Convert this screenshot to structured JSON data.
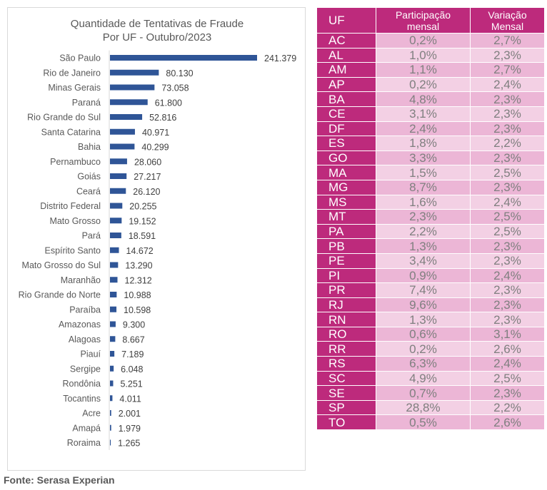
{
  "chart_data": {
    "type": "bar",
    "orientation": "horizontal",
    "title": "Quantidade de Tentativas de Fraude\nPor UF - Outubro/2023",
    "title_lines": [
      "Quantidade de Tentativas de Fraude",
      "Por UF - Outubro/2023"
    ],
    "xlabel": "",
    "ylabel": "",
    "xlim": [
      0,
      241379
    ],
    "grid": false,
    "legend": "none",
    "bar_color": "#2f5597",
    "categories": [
      "São Paulo",
      "Rio de Janeiro",
      "Minas Gerais",
      "Paraná",
      "Rio Grande do Sul",
      "Santa Catarina",
      "Bahia",
      "Pernambuco",
      "Goiás",
      "Ceará",
      "Distrito Federal",
      "Mato Grosso",
      "Pará",
      "Espírito Santo",
      "Mato Grosso do Sul",
      "Maranhão",
      "Rio Grande do Norte",
      "Paraíba",
      "Amazonas",
      "Alagoas",
      "Piauí",
      "Sergipe",
      "Rondônia",
      "Tocantins",
      "Acre",
      "Amapá",
      "Roraima"
    ],
    "values": [
      241379,
      80130,
      73058,
      61800,
      52816,
      40971,
      40299,
      28060,
      27217,
      26120,
      20255,
      19152,
      18591,
      14672,
      13290,
      12312,
      10988,
      10598,
      9300,
      8667,
      7189,
      6048,
      5251,
      4011,
      2001,
      1979,
      1265
    ],
    "value_labels": [
      "241.379",
      "80.130",
      "73.058",
      "61.800",
      "52.816",
      "40.971",
      "40.299",
      "28.060",
      "27.217",
      "26.120",
      "20.255",
      "19.152",
      "18.591",
      "14.672",
      "13.290",
      "12.312",
      "10.988",
      "10.598",
      "9.300",
      "8.667",
      "7.189",
      "6.048",
      "5.251",
      "4.011",
      "2.001",
      "1.979",
      "1.265"
    ]
  },
  "table": {
    "headers": [
      "UF",
      "Participação mensal",
      "Variação Mensal"
    ],
    "header_lines": [
      [
        "UF"
      ],
      [
        "Participação",
        "mensal"
      ],
      [
        "Variação",
        "Mensal"
      ]
    ],
    "colors": {
      "header_bg": "#bd2a7c",
      "row_odd_bg": "#ecb6d6",
      "row_even_bg": "#f3d0e4",
      "value_text": "#7f7f7f"
    },
    "rows": [
      {
        "uf": "AC",
        "participacao": "0,2%",
        "variacao": "2,7%"
      },
      {
        "uf": "AL",
        "participacao": "1,0%",
        "variacao": "2,3%"
      },
      {
        "uf": "AM",
        "participacao": "1,1%",
        "variacao": "2,7%"
      },
      {
        "uf": "AP",
        "participacao": "0,2%",
        "variacao": "2,4%"
      },
      {
        "uf": "BA",
        "participacao": "4,8%",
        "variacao": "2,3%"
      },
      {
        "uf": "CE",
        "participacao": "3,1%",
        "variacao": "2,3%"
      },
      {
        "uf": "DF",
        "participacao": "2,4%",
        "variacao": "2,3%"
      },
      {
        "uf": "ES",
        "participacao": "1,8%",
        "variacao": "2,2%"
      },
      {
        "uf": "GO",
        "participacao": "3,3%",
        "variacao": "2,3%"
      },
      {
        "uf": "MA",
        "participacao": "1,5%",
        "variacao": "2,5%"
      },
      {
        "uf": "MG",
        "participacao": "8,7%",
        "variacao": "2,3%"
      },
      {
        "uf": "MS",
        "participacao": "1,6%",
        "variacao": "2,4%"
      },
      {
        "uf": "MT",
        "participacao": "2,3%",
        "variacao": "2,5%"
      },
      {
        "uf": "PA",
        "participacao": "2,2%",
        "variacao": "2,5%"
      },
      {
        "uf": "PB",
        "participacao": "1,3%",
        "variacao": "2,3%"
      },
      {
        "uf": "PE",
        "participacao": "3,4%",
        "variacao": "2,3%"
      },
      {
        "uf": "PI",
        "participacao": "0,9%",
        "variacao": "2,4%"
      },
      {
        "uf": "PR",
        "participacao": "7,4%",
        "variacao": "2,3%"
      },
      {
        "uf": "RJ",
        "participacao": "9,6%",
        "variacao": "2,3%"
      },
      {
        "uf": "RN",
        "participacao": "1,3%",
        "variacao": "2,3%"
      },
      {
        "uf": "RO",
        "participacao": "0,6%",
        "variacao": "3,1%"
      },
      {
        "uf": "RR",
        "participacao": "0,2%",
        "variacao": "2,6%"
      },
      {
        "uf": "RS",
        "participacao": "6,3%",
        "variacao": "2,4%"
      },
      {
        "uf": "SC",
        "participacao": "4,9%",
        "variacao": "2,5%"
      },
      {
        "uf": "SE",
        "participacao": "0,7%",
        "variacao": "2,3%"
      },
      {
        "uf": "SP",
        "participacao": "28,8%",
        "variacao": "2,2%"
      },
      {
        "uf": "TO",
        "participacao": "0,5%",
        "variacao": "2,6%"
      }
    ]
  },
  "source": "Fonte: Serasa Experian"
}
